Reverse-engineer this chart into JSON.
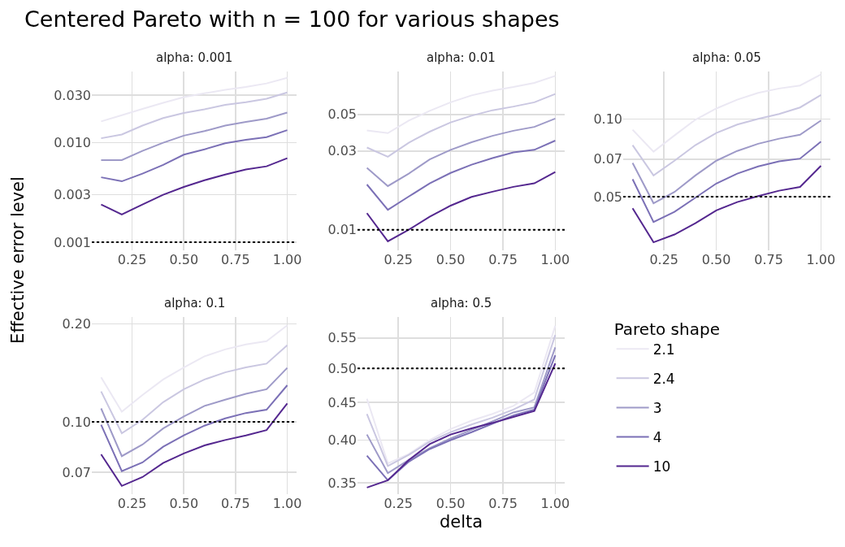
{
  "chart_data": [
    {
      "type": "line",
      "title": "alpha: 0.001",
      "ylabel": "Effective error level",
      "annotations": [
        "Centered Pareto with n = 100 for various shapes"
      ],
      "log": true,
      "grid": true,
      "x": [
        0.1,
        0.2,
        0.3,
        0.4,
        0.5,
        0.6,
        0.7,
        0.8,
        0.9,
        1.0
      ],
      "xlim": [
        0.055,
        1.045
      ],
      "xticks": [
        {
          "value": 0.25,
          "label": "0.25"
        },
        {
          "value": 0.5,
          "label": "0.50"
        },
        {
          "value": 0.75,
          "label": "0.75"
        },
        {
          "value": 1,
          "label": "1.00"
        }
      ],
      "ylim": [
        0.00083,
        0.052
      ],
      "yticks": [
        0.001,
        0.003,
        {
          "value": 0.01,
          "label": "0.010"
        },
        {
          "value": 0.03,
          "label": "0.030"
        }
      ],
      "ref_lines": [
        {
          "axis": "y",
          "value": 0.001,
          "color": "#000000",
          "line_style": "dotted"
        }
      ],
      "series": [
        {
          "color": "#ebe8f3",
          "values": [
            0.0164,
            0.0189,
            0.0219,
            0.0252,
            0.0287,
            0.0314,
            0.0341,
            0.0364,
            0.0395,
            0.0449
          ]
        },
        {
          "color": "#cac7e1",
          "values": [
            0.0111,
            0.0121,
            0.0149,
            0.0177,
            0.0199,
            0.0217,
            0.024,
            0.0256,
            0.0277,
            0.032
          ]
        },
        {
          "color": "#9e9ac8",
          "values": [
            0.0067,
            0.0067,
            0.0083,
            0.01,
            0.0118,
            0.0131,
            0.0149,
            0.0162,
            0.0175,
            0.0201
          ]
        },
        {
          "color": "#7b70b6",
          "values": [
            0.0045,
            0.0041,
            0.0049,
            0.006,
            0.0076,
            0.0086,
            0.0099,
            0.0107,
            0.0114,
            0.0134
          ]
        },
        {
          "color": "#54278f",
          "values": [
            0.0024,
            0.0019,
            0.0024,
            0.003,
            0.0036,
            0.0042,
            0.0048,
            0.0054,
            0.0058,
            0.007
          ]
        }
      ]
    },
    {
      "type": "line",
      "title": "alpha: 0.01",
      "log": true,
      "grid": true,
      "x": [
        0.1,
        0.2,
        0.3,
        0.4,
        0.5,
        0.6,
        0.7,
        0.8,
        0.9,
        1.0
      ],
      "xlim": [
        0.055,
        1.045
      ],
      "xticks": [
        {
          "value": 0.25,
          "label": "0.25"
        },
        {
          "value": 0.5,
          "label": "0.50"
        },
        {
          "value": 0.75,
          "label": "0.75"
        },
        {
          "value": 1,
          "label": "1.00"
        }
      ],
      "ylim": [
        0.0075,
        0.091
      ],
      "yticks": [
        0.01,
        0.03,
        0.05
      ],
      "ref_lines": [
        {
          "axis": "y",
          "value": 0.01,
          "color": "#000000",
          "line_style": "dotted"
        }
      ],
      "series": [
        {
          "color": "#ebe8f3",
          "values": [
            0.04,
            0.0385,
            0.0459,
            0.0526,
            0.0592,
            0.0652,
            0.0697,
            0.0733,
            0.0777,
            0.0856
          ]
        },
        {
          "color": "#cac7e1",
          "values": [
            0.0315,
            0.0277,
            0.0337,
            0.0393,
            0.0447,
            0.0491,
            0.053,
            0.0558,
            0.0592,
            0.0665
          ]
        },
        {
          "color": "#9e9ac8",
          "values": [
            0.0237,
            0.0184,
            0.0219,
            0.0267,
            0.0305,
            0.0339,
            0.0371,
            0.0398,
            0.042,
            0.0472
          ]
        },
        {
          "color": "#7b70b6",
          "values": [
            0.0188,
            0.0132,
            0.0159,
            0.0191,
            0.0221,
            0.0248,
            0.0272,
            0.0294,
            0.0305,
            0.0347
          ]
        },
        {
          "color": "#54278f",
          "values": [
            0.0126,
            0.0085,
            0.01,
            0.012,
            0.014,
            0.0158,
            0.017,
            0.0182,
            0.0191,
            0.0224
          ]
        }
      ]
    },
    {
      "type": "line",
      "title": "alpha: 0.05",
      "log": true,
      "grid": true,
      "x": [
        0.1,
        0.2,
        0.3,
        0.4,
        0.5,
        0.6,
        0.7,
        0.8,
        0.9,
        1.0
      ],
      "xlim": [
        0.055,
        1.045
      ],
      "xticks": [
        {
          "value": 0.25,
          "label": "0.25"
        },
        {
          "value": 0.5,
          "label": "0.50"
        },
        {
          "value": 0.75,
          "label": "0.75"
        },
        {
          "value": 1,
          "label": "1.00"
        }
      ],
      "ylim": [
        0.031,
        0.153
      ],
      "yticks": [
        0.05,
        0.07,
        {
          "value": 0.1,
          "label": "0.10"
        }
      ],
      "ref_lines": [
        {
          "axis": "y",
          "value": 0.05,
          "color": "#000000",
          "line_style": "dotted"
        }
      ],
      "series": [
        {
          "color": "#ebe8f3",
          "values": [
            0.091,
            0.0748,
            0.0865,
            0.0995,
            0.11,
            0.119,
            0.1265,
            0.1315,
            0.135,
            0.149
          ]
        },
        {
          "color": "#cac7e1",
          "values": [
            0.0793,
            0.0605,
            0.069,
            0.0793,
            0.0884,
            0.0953,
            0.1003,
            0.1047,
            0.111,
            0.124
          ]
        },
        {
          "color": "#9e9ac8",
          "values": [
            0.0676,
            0.0472,
            0.0522,
            0.0605,
            0.069,
            0.0753,
            0.0803,
            0.084,
            0.087,
            0.0988
          ]
        },
        {
          "color": "#7b70b6",
          "values": [
            0.0585,
            0.0399,
            0.0437,
            0.0496,
            0.0563,
            0.0615,
            0.0656,
            0.0686,
            0.0703,
            0.0818
          ]
        },
        {
          "color": "#54278f",
          "values": [
            0.0451,
            0.0333,
            0.0357,
            0.0395,
            0.0443,
            0.0477,
            0.0503,
            0.0528,
            0.0546,
            0.0659
          ]
        }
      ]
    },
    {
      "type": "line",
      "title": "alpha: 0.1",
      "log": true,
      "grid": true,
      "x": [
        0.1,
        0.2,
        0.3,
        0.4,
        0.5,
        0.6,
        0.7,
        0.8,
        0.9,
        1.0
      ],
      "xlim": [
        0.055,
        1.045
      ],
      "xticks": [
        {
          "value": 0.25,
          "label": "0.25"
        },
        {
          "value": 0.5,
          "label": "0.50"
        },
        {
          "value": 0.75,
          "label": "0.75"
        },
        {
          "value": 1,
          "label": "1.00"
        }
      ],
      "ylim": [
        0.06,
        0.21
      ],
      "yticks": [
        0.07,
        {
          "value": 0.1,
          "label": "0.10"
        },
        {
          "value": 0.2,
          "label": "0.20"
        }
      ],
      "ref_lines": [
        {
          "axis": "y",
          "value": 0.1,
          "color": "#000000",
          "line_style": "dotted"
        }
      ],
      "series": [
        {
          "color": "#ebe8f3",
          "values": [
            0.137,
            0.1075,
            0.121,
            0.135,
            0.147,
            0.159,
            0.167,
            0.173,
            0.177,
            0.198
          ]
        },
        {
          "color": "#cac7e1",
          "values": [
            0.124,
            0.0923,
            0.1015,
            0.115,
            0.126,
            0.135,
            0.142,
            0.147,
            0.151,
            0.172
          ]
        },
        {
          "color": "#9e9ac8",
          "values": [
            0.11,
            0.0785,
            0.0852,
            0.0955,
            0.1039,
            0.112,
            0.117,
            0.122,
            0.126,
            0.1465
          ]
        },
        {
          "color": "#7b70b6",
          "values": [
            0.098,
            0.0706,
            0.0751,
            0.0839,
            0.0909,
            0.0974,
            0.1025,
            0.1065,
            0.109,
            0.1296
          ]
        },
        {
          "color": "#54278f",
          "values": [
            0.0795,
            0.0636,
            0.0677,
            0.0748,
            0.08,
            0.0847,
            0.088,
            0.0909,
            0.0944,
            0.114
          ]
        }
      ]
    },
    {
      "type": "line",
      "title": "alpha: 0.5",
      "xlabel": "delta",
      "legend": "right",
      "legend_title": "Pareto shape",
      "log": true,
      "grid": true,
      "x": [
        0.1,
        0.2,
        0.3,
        0.4,
        0.5,
        0.6,
        0.7,
        0.8,
        0.9,
        1.0
      ],
      "xlim": [
        0.055,
        1.045
      ],
      "xticks": [
        {
          "value": 0.25,
          "label": "0.25"
        },
        {
          "value": 0.5,
          "label": "0.50"
        },
        {
          "value": 0.75,
          "label": "0.75"
        },
        {
          "value": 1,
          "label": "1.00"
        }
      ],
      "ylim": [
        0.338,
        0.587
      ],
      "yticks": [
        0.35,
        {
          "value": 0.4,
          "label": "0.40"
        },
        0.45,
        {
          "value": 0.5,
          "label": "0.50"
        },
        0.55
      ],
      "ref_lines": [
        {
          "axis": "y",
          "value": 0.5,
          "color": "#000000",
          "line_style": "dotted"
        }
      ],
      "series": [
        {
          "name": "2.1",
          "color": "#ebe8f3",
          "values": [
            0.455,
            0.372,
            0.383,
            0.4,
            0.414,
            0.425,
            0.434,
            0.445,
            0.464,
            0.571
          ]
        },
        {
          "name": "2.4",
          "color": "#cac7e1",
          "values": [
            0.434,
            0.369,
            0.382,
            0.398,
            0.41,
            0.42,
            0.429,
            0.44,
            0.454,
            0.555
          ]
        },
        {
          "name": "3",
          "color": "#9e9ac8",
          "values": [
            0.407,
            0.361,
            0.376,
            0.39,
            0.402,
            0.413,
            0.424,
            0.436,
            0.443,
            0.534
          ]
        },
        {
          "name": "4",
          "color": "#7b70b6",
          "values": [
            0.381,
            0.353,
            0.374,
            0.389,
            0.4,
            0.41,
            0.421,
            0.432,
            0.44,
            0.521
          ]
        },
        {
          "name": "10",
          "color": "#54278f",
          "values": [
            0.345,
            0.353,
            0.376,
            0.395,
            0.407,
            0.415,
            0.422,
            0.43,
            0.438,
            0.508
          ]
        }
      ]
    }
  ]
}
